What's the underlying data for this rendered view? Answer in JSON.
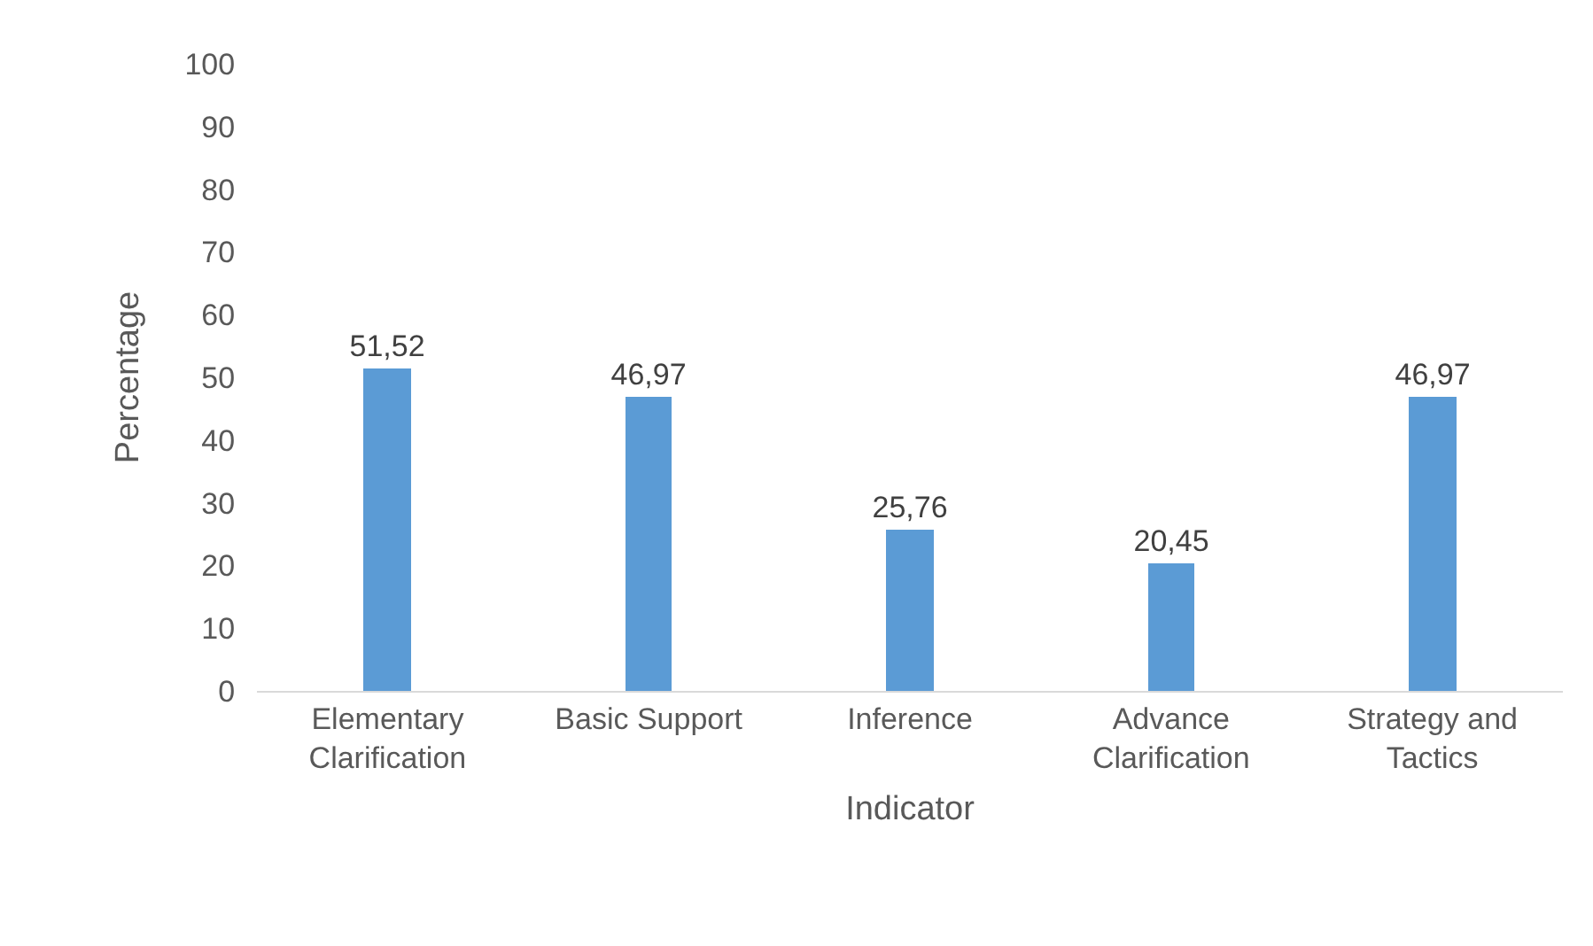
{
  "chart_data": {
    "type": "bar",
    "xlabel": "Indicator",
    "ylabel": "Percentage",
    "categories": [
      "Elementary Clarification",
      "Basic Support",
      "Inference",
      "Advance Clarification",
      "Strategy and Tactics"
    ],
    "values": [
      51.52,
      46.97,
      25.76,
      20.45,
      46.97
    ],
    "value_labels": [
      "51,52",
      "46,97",
      "25,76",
      "20,45",
      "46,97"
    ],
    "color": "#5b9bd5",
    "ylim": [
      0,
      100
    ],
    "yticks": [
      0,
      10,
      20,
      30,
      40,
      50,
      60,
      70,
      80,
      90,
      100
    ],
    "grid": false
  }
}
